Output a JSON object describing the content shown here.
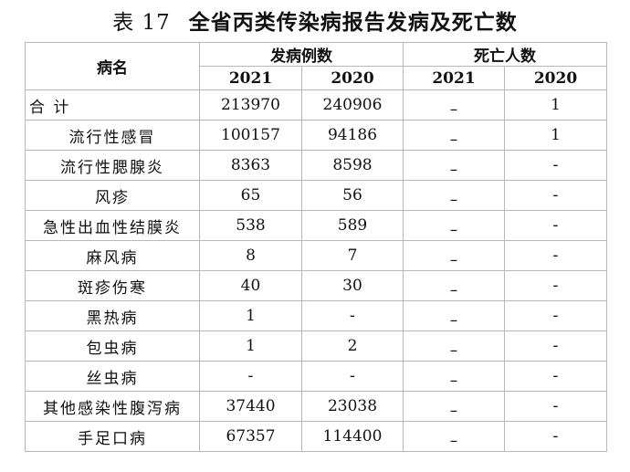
{
  "title": {
    "number": "表 17",
    "text": "全省丙类传染病报告发病及死亡数"
  },
  "header": {
    "disease_col": "病名",
    "incidence_group": "发病例数",
    "death_group": "死亡人数",
    "years": [
      "2021",
      "2020",
      "2021",
      "2020"
    ]
  },
  "rows": [
    {
      "name": "合  计",
      "inc2021": "213970",
      "inc2020": "240906",
      "death2021": "–",
      "death2020": "1"
    },
    {
      "name": "流行性感冒",
      "inc2021": "100157",
      "inc2020": "94186",
      "death2021": "–",
      "death2020": "1"
    },
    {
      "name": "流行性腮腺炎",
      "inc2021": "8363",
      "inc2020": "8598",
      "death2021": "–",
      "death2020": "-"
    },
    {
      "name": "风疹",
      "inc2021": "65",
      "inc2020": "56",
      "death2021": "–",
      "death2020": "-"
    },
    {
      "name": "急性出血性结膜炎",
      "inc2021": "538",
      "inc2020": "589",
      "death2021": "–",
      "death2020": "-"
    },
    {
      "name": "麻风病",
      "inc2021": "8",
      "inc2020": "7",
      "death2021": "–",
      "death2020": "-"
    },
    {
      "name": "斑疹伤寒",
      "inc2021": "40",
      "inc2020": "30",
      "death2021": "–",
      "death2020": "-"
    },
    {
      "name": "黑热病",
      "inc2021": "1",
      "inc2020": "-",
      "death2021": "–",
      "death2020": "-"
    },
    {
      "name": "包虫病",
      "inc2021": "1",
      "inc2020": "2",
      "death2021": "–",
      "death2020": "-"
    },
    {
      "name": "丝虫病",
      "inc2021": "-",
      "inc2020": "-",
      "death2021": "–",
      "death2020": "-"
    },
    {
      "name": "其他感染性腹泻病",
      "inc2021": "37440",
      "inc2020": "23038",
      "death2021": "–",
      "death2020": "-"
    },
    {
      "name": "手足口病",
      "inc2021": "67357",
      "inc2020": "114400",
      "death2021": "–",
      "death2020": "-"
    }
  ]
}
